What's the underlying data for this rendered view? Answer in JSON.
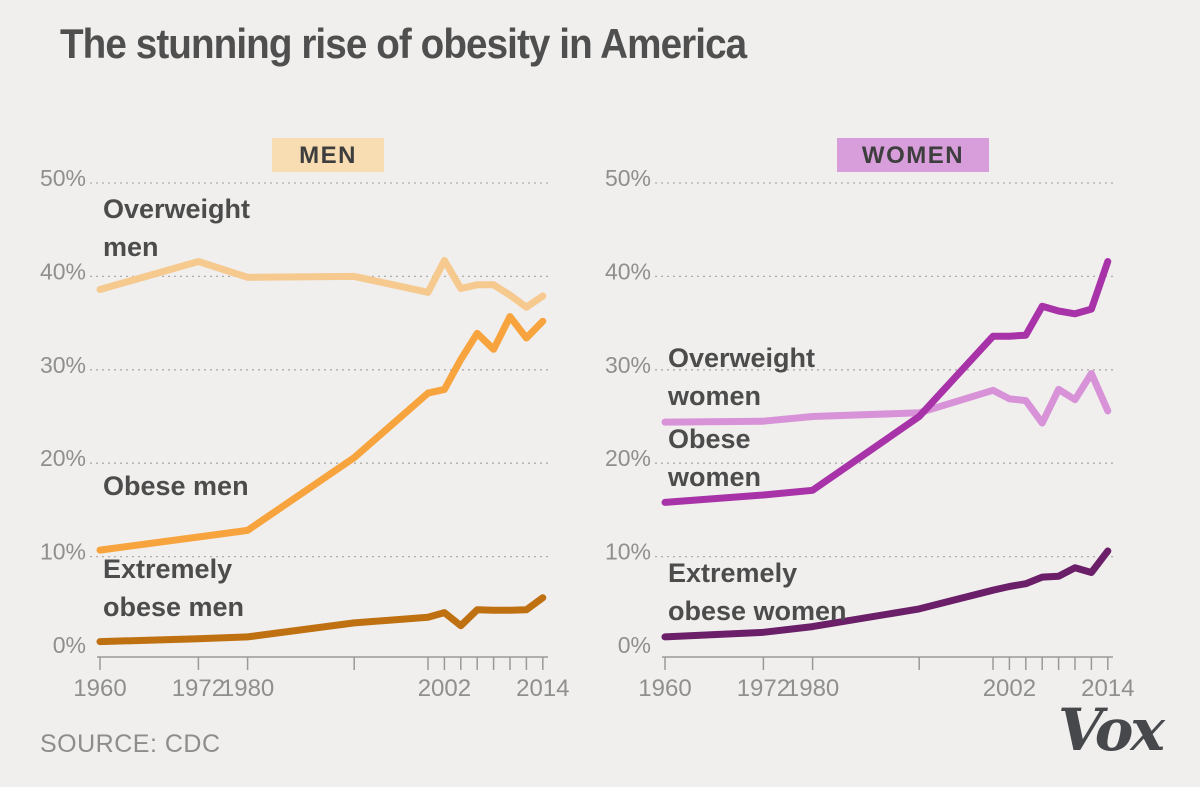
{
  "title": "The stunning rise of obesity in America",
  "source_label": "SOURCE: CDC",
  "brand_logo": "Vox",
  "theme": {
    "background": "#f0efed",
    "title_color": "#4f4f4f",
    "axis_text_color": "#8f8f8f",
    "grid_color": "#adadad",
    "axis_line_color": "#9a9a9a",
    "series_label_color": "#4c4c4c",
    "badge_text_color": "#3e3e3e",
    "source_color": "#8d8d8d",
    "logo_color": "#46484b"
  },
  "chart_data": [
    {
      "type": "line",
      "title": "MEN",
      "badge_bg": "#f8ddb2",
      "xlabel": "",
      "ylabel": "",
      "xlim": [
        1960,
        2014
      ],
      "ylim": [
        0,
        50
      ],
      "grid": true,
      "x_years": [
        1960,
        1972,
        1978,
        1991,
        2000,
        2002,
        2004,
        2006,
        2008,
        2010,
        2012,
        2014
      ],
      "x_ticks": [
        1960,
        1972,
        1978,
        1991,
        2000,
        2002,
        2004,
        2006,
        2008,
        2010,
        2012,
        2014
      ],
      "x_tick_labels": [
        {
          "year": 1960,
          "label": "1960"
        },
        {
          "year": 1972,
          "label": "1972"
        },
        {
          "year": 1978,
          "label": "1980"
        },
        {
          "year": 2002,
          "label": "2002"
        },
        {
          "year": 2014,
          "label": "2014"
        }
      ],
      "y_ticks": [
        0,
        10,
        20,
        30,
        40,
        50
      ],
      "y_tick_suffix": "%",
      "series": [
        {
          "name": "Overweight men",
          "color": "#f6c98f",
          "values": [
            38.6,
            41.6,
            39.9,
            40.0,
            38.3,
            41.7,
            38.7,
            39.1,
            39.1,
            38.0,
            36.7,
            37.9
          ],
          "annotation": {
            "lines": [
              "Overweight",
              "men"
            ],
            "x": 93,
            "baselines": [
              88,
              126
            ]
          }
        },
        {
          "name": "Obese men",
          "color": "#f8a43e",
          "values": [
            10.7,
            12.1,
            12.8,
            20.6,
            27.5,
            27.9,
            31.1,
            33.9,
            32.2,
            35.7,
            33.4,
            35.2
          ],
          "annotation": {
            "lines": [
              "Obese men"
            ],
            "x": 93,
            "baselines": [
              365
            ]
          }
        },
        {
          "name": "Extremely obese men",
          "color": "#bf7011",
          "values": [
            0.9,
            1.2,
            1.4,
            2.9,
            3.5,
            4.0,
            2.6,
            4.3,
            4.25,
            4.25,
            4.3,
            5.6
          ],
          "annotation": {
            "lines": [
              "Extremely",
              "obese men"
            ],
            "x": 93,
            "baselines": [
              448,
              486
            ]
          }
        }
      ]
    },
    {
      "type": "line",
      "title": "WOMEN",
      "badge_bg": "#d79edb",
      "xlabel": "",
      "ylabel": "",
      "xlim": [
        1960,
        2014
      ],
      "ylim": [
        0,
        50
      ],
      "grid": true,
      "x_years": [
        1960,
        1972,
        1978,
        1991,
        2000,
        2002,
        2004,
        2006,
        2008,
        2010,
        2012,
        2014
      ],
      "x_ticks": [
        1960,
        1972,
        1978,
        1991,
        2000,
        2002,
        2004,
        2006,
        2008,
        2010,
        2012,
        2014
      ],
      "x_tick_labels": [
        {
          "year": 1960,
          "label": "1960"
        },
        {
          "year": 1972,
          "label": "1972"
        },
        {
          "year": 1978,
          "label": "1980"
        },
        {
          "year": 2002,
          "label": "2002"
        },
        {
          "year": 2014,
          "label": "2014"
        }
      ],
      "y_ticks": [
        0,
        10,
        20,
        30,
        40,
        50
      ],
      "y_tick_suffix": "%",
      "series": [
        {
          "name": "Overweight women",
          "color": "#d893d8",
          "values": [
            24.4,
            24.5,
            25.0,
            25.4,
            27.8,
            26.9,
            26.7,
            24.3,
            27.9,
            26.8,
            29.6,
            25.6
          ],
          "annotation": {
            "lines": [
              "Overweight",
              "women"
            ],
            "x": 93,
            "baselines": [
              237,
              275
            ]
          }
        },
        {
          "name": "Obese women",
          "color": "#a832a8",
          "values": [
            15.8,
            16.6,
            17.1,
            25.0,
            33.6,
            33.6,
            33.7,
            36.8,
            36.3,
            36.0,
            36.5,
            41.6
          ],
          "annotation": {
            "lines": [
              "Obese",
              "women"
            ],
            "x": 93,
            "baselines": [
              318,
              356
            ]
          }
        },
        {
          "name": "Extremely obese women",
          "color": "#6b1f69",
          "values": [
            1.4,
            1.9,
            2.5,
            4.4,
            6.4,
            6.8,
            7.1,
            7.8,
            7.9,
            8.8,
            8.3,
            10.6
          ],
          "annotation": {
            "lines": [
              "Extremely",
              "obese women"
            ],
            "x": 93,
            "baselines": [
              452,
              490
            ]
          }
        }
      ]
    }
  ]
}
